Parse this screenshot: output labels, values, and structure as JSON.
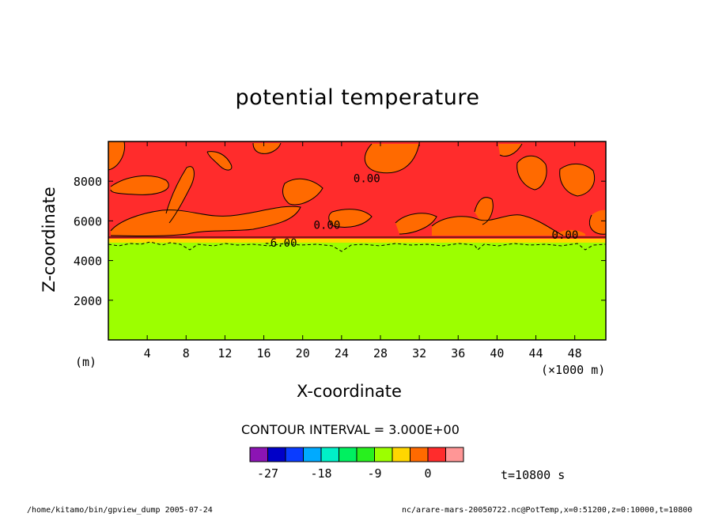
{
  "chart_data": {
    "type": "heatmap",
    "title": "potential temperature",
    "xlabel": "X-coordinate",
    "ylabel": "Z-coordinate",
    "x_unit": "(×1000 m)",
    "y_unit": "(m)",
    "xlim": [
      0,
      51.2
    ],
    "ylim": [
      0,
      10000
    ],
    "x_ticks": [
      4,
      8,
      12,
      16,
      20,
      24,
      28,
      32,
      36,
      40,
      44,
      48
    ],
    "y_ticks": [
      2000,
      4000,
      6000,
      8000
    ],
    "contour_interval_text": "CONTOUR INTERVAL = 3.000E+00",
    "contour_labels": [
      {
        "text": "0.00",
        "x": 26.6,
        "z": 8150
      },
      {
        "text": "0.00",
        "x": 22.5,
        "z": 5800
      },
      {
        "text": "0.00",
        "x": 47.0,
        "z": 5300
      },
      {
        "text": "-6.00",
        "x": 17.7,
        "z": 4900
      }
    ],
    "regions": [
      {
        "name": "lower layer",
        "z_range": [
          0,
          4900
        ],
        "bin": [
          -9,
          -6
        ],
        "color": "#9CFF00"
      },
      {
        "name": "transition band",
        "z_range": [
          4900,
          5100
        ],
        "bin": [
          -3,
          0
        ],
        "color": "#FFD600"
      },
      {
        "name": "upper layer",
        "z_range": [
          5100,
          9850
        ],
        "bin": [
          3,
          6
        ],
        "color": "#FF2C2C"
      },
      {
        "name": "patches",
        "bin": [
          0,
          3
        ],
        "color": "#FF6A00"
      }
    ],
    "colorbar": {
      "colors": [
        "#8C14B4",
        "#0000C8",
        "#0A3CFF",
        "#00AAFF",
        "#00F0C8",
        "#00F060",
        "#28F01E",
        "#9CFF00",
        "#FFD600",
        "#FF6A00",
        "#FF2C2C",
        "#FF9696"
      ],
      "labels": [
        "-27",
        "-18",
        "-9",
        "0"
      ],
      "label_boundary_index": [
        1,
        4,
        7,
        10
      ]
    },
    "time_text": "t=10800 s",
    "legend": "bottom-center",
    "grid": false
  },
  "footer": {
    "left": "/home/kitamo/bin/gpview_dump  2005-07-24",
    "right": "nc/arare-mars-20050722.nc@PotTemp,x=0:51200,z=0:10000,t=10800"
  }
}
